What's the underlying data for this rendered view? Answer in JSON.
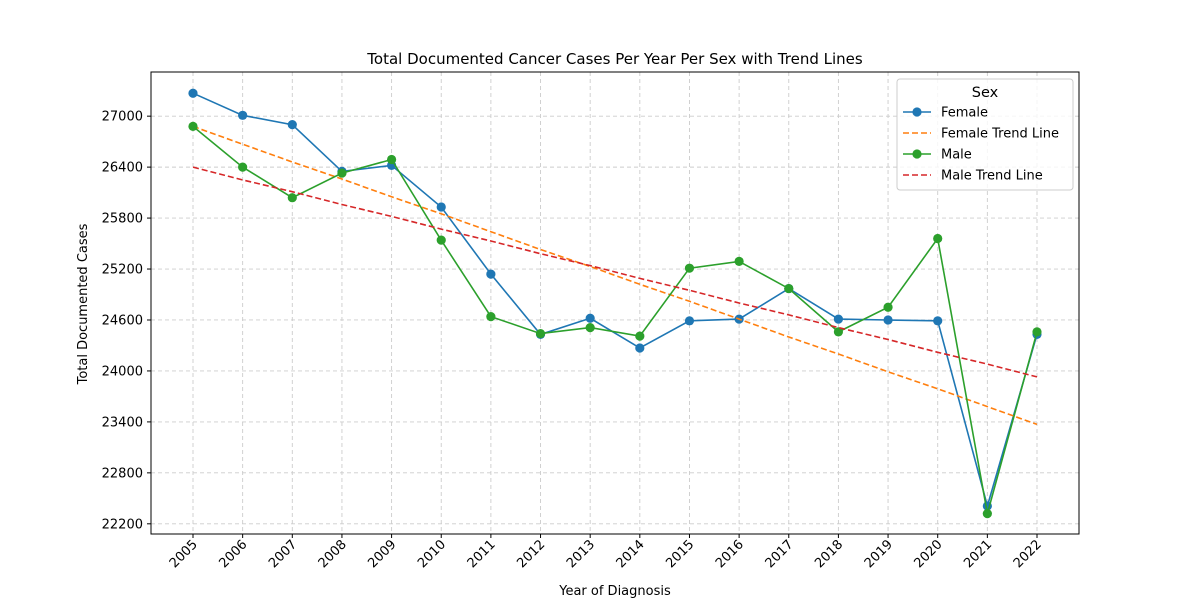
{
  "chart_data": {
    "type": "line",
    "title": "Total Documented Cancer Cases Per Year Per Sex with Trend Lines",
    "xlabel": "Year of Diagnosis",
    "ylabel": "Total Documented Cases",
    "x": [
      "2005",
      "2006",
      "2007",
      "2008",
      "2009",
      "2010",
      "2011",
      "2012",
      "2013",
      "2014",
      "2015",
      "2016",
      "2017",
      "2018",
      "2019",
      "2020",
      "2021",
      "2022"
    ],
    "ylim": [
      22080,
      27520
    ],
    "yticks": [
      "22200",
      "22800",
      "23400",
      "24000",
      "24600",
      "25200",
      "25800",
      "26400",
      "27000"
    ],
    "grid": true,
    "legend": {
      "title": "Sex",
      "placement": "top-right",
      "entries": [
        "Female",
        "Female Trend Line",
        "Male",
        "Male Trend Line"
      ]
    },
    "series": [
      {
        "name": "Female",
        "style": "line-marker",
        "color": "#1f77b4",
        "values": [
          27270,
          27010,
          26900,
          26350,
          26420,
          25930,
          25140,
          24430,
          24620,
          24270,
          24590,
          24610,
          24970,
          24610,
          24600,
          24590,
          22410,
          24430
        ]
      },
      {
        "name": "Female Trend Line",
        "style": "dashed",
        "color": "#ff7f0e",
        "values": [
          26880,
          26670,
          26460,
          26260,
          26050,
          25850,
          25640,
          25430,
          25230,
          25020,
          24820,
          24610,
          24400,
          24200,
          23990,
          23790,
          23580,
          23370
        ]
      },
      {
        "name": "Male",
        "style": "line-marker",
        "color": "#2ca02c",
        "values": [
          26880,
          26400,
          26040,
          26330,
          26490,
          25540,
          24640,
          24440,
          24510,
          24410,
          25210,
          25290,
          24970,
          24460,
          24750,
          25560,
          22320,
          24460
        ]
      },
      {
        "name": "Male Trend Line",
        "style": "dashed",
        "color": "#d62728",
        "values": [
          26400,
          26250,
          26110,
          25960,
          25820,
          25670,
          25530,
          25380,
          25240,
          25090,
          24950,
          24800,
          24660,
          24510,
          24370,
          24220,
          24080,
          23930
        ]
      }
    ]
  }
}
